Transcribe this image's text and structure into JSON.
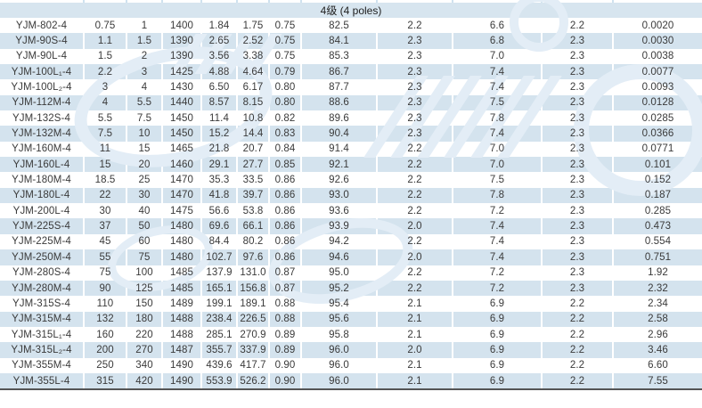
{
  "header": {
    "group_label": "4级 (4 poles)"
  },
  "colors": {
    "stripe": "#d4e3ee",
    "band": "#d7e5ef",
    "text": "#3a3a3a",
    "band_text": "#1e1e1e",
    "watermark": "#e3edf6",
    "tick": "#cfe2ef",
    "bottom_border": "#555555"
  },
  "table": {
    "rows": [
      [
        "YJM-802-4",
        "0.75",
        "1",
        "1400",
        "1.84",
        "1.75",
        "0.75",
        "82.5",
        "2.2",
        "6.6",
        "2.2",
        "0.0020"
      ],
      [
        "YJM-90S-4",
        "1.1",
        "1.5",
        "1390",
        "2.65",
        "2.52",
        "0.75",
        "84.1",
        "2.3",
        "6.8",
        "2.3",
        "0.0030"
      ],
      [
        "YJM-90L-4",
        "1.5",
        "2",
        "1390",
        "3.56",
        "3.38",
        "0.75",
        "85.3",
        "2.3",
        "7.0",
        "2.3",
        "0.0038"
      ],
      [
        "YJM-100L₁-4",
        "2.2",
        "3",
        "1425",
        "4.88",
        "4.64",
        "0.79",
        "86.7",
        "2.3",
        "7.4",
        "2.3",
        "0.0077"
      ],
      [
        "YJM-100L₂-4",
        "3",
        "4",
        "1430",
        "6.50",
        "6.17",
        "0.80",
        "87.7",
        "2.3",
        "7.4",
        "2.3",
        "0.0093"
      ],
      [
        "YJM-112M-4",
        "4",
        "5.5",
        "1440",
        "8.57",
        "8.15",
        "0.80",
        "88.6",
        "2.3",
        "7.5",
        "2.3",
        "0.0128"
      ],
      [
        "YJM-132S-4",
        "5.5",
        "7.5",
        "1450",
        "11.4",
        "10.8",
        "0.82",
        "89.6",
        "2.3",
        "7.8",
        "2.3",
        "0.0285"
      ],
      [
        "YJM-132M-4",
        "7.5",
        "10",
        "1450",
        "15.2",
        "14.4",
        "0.83",
        "90.4",
        "2.3",
        "7.4",
        "2.3",
        "0.0366"
      ],
      [
        "YJM-160M-4",
        "11",
        "15",
        "1465",
        "21.8",
        "20.7",
        "0.84",
        "91.4",
        "2.2",
        "7.0",
        "2.3",
        "0.0771"
      ],
      [
        "YJM-160L-4",
        "15",
        "20",
        "1460",
        "29.1",
        "27.7",
        "0.85",
        "92.1",
        "2.2",
        "7.0",
        "2.3",
        "0.101"
      ],
      [
        "YJM-180M-4",
        "18.5",
        "25",
        "1470",
        "35.3",
        "33.5",
        "0.86",
        "92.6",
        "2.2",
        "7.5",
        "2.3",
        "0.152"
      ],
      [
        "YJM-180L-4",
        "22",
        "30",
        "1470",
        "41.8",
        "39.7",
        "0.86",
        "93.0",
        "2.2",
        "7.8",
        "2.3",
        "0.187"
      ],
      [
        "YJM-200L-4",
        "30",
        "40",
        "1475",
        "56.6",
        "53.8",
        "0.86",
        "93.6",
        "2.2",
        "7.2",
        "2.3",
        "0.285"
      ],
      [
        "YJM-225S-4",
        "37",
        "50",
        "1480",
        "69.6",
        "66.1",
        "0.86",
        "93.9",
        "2.0",
        "7.4",
        "2.3",
        "0.473"
      ],
      [
        "YJM-225M-4",
        "45",
        "60",
        "1480",
        "84.4",
        "80.2",
        "0.86",
        "94.2",
        "2.2",
        "7.4",
        "2.3",
        "0.554"
      ],
      [
        "YJM-250M-4",
        "55",
        "75",
        "1480",
        "102.7",
        "97.6",
        "0.86",
        "94.6",
        "2.0",
        "7.4",
        "2.3",
        "0.751"
      ],
      [
        "YJM-280S-4",
        "75",
        "100",
        "1485",
        "137.9",
        "131.0",
        "0.87",
        "95.0",
        "2.2",
        "7.2",
        "2.3",
        "1.92"
      ],
      [
        "YJM-280M-4",
        "90",
        "125",
        "1485",
        "165.1",
        "156.8",
        "0.87",
        "95.2",
        "2.2",
        "7.2",
        "2.3",
        "2.32"
      ],
      [
        "YJM-315S-4",
        "110",
        "150",
        "1489",
        "199.1",
        "189.1",
        "0.88",
        "95.4",
        "2.1",
        "6.9",
        "2.2",
        "2.34"
      ],
      [
        "YJM-315M-4",
        "132",
        "180",
        "1488",
        "238.4",
        "226.5",
        "0.88",
        "95.6",
        "2.1",
        "6.9",
        "2.2",
        "2.58"
      ],
      [
        "YJM-315L₁-4",
        "160",
        "220",
        "1488",
        "285.1",
        "270.9",
        "0.89",
        "95.8",
        "2.1",
        "6.9",
        "2.2",
        "2.96"
      ],
      [
        "YJM-315L₂-4",
        "200",
        "270",
        "1487",
        "355.7",
        "337.9",
        "0.89",
        "96.0",
        "2.0",
        "6.9",
        "2.2",
        "3.46"
      ],
      [
        "YJM-355M-4",
        "250",
        "340",
        "1490",
        "439.6",
        "417.7",
        "0.90",
        "96.0",
        "2.1",
        "6.9",
        "2.2",
        "6.60"
      ],
      [
        "YJM-355L-4",
        "315",
        "420",
        "1490",
        "553.9",
        "526.2",
        "0.90",
        "96.0",
        "2.1",
        "6.9",
        "2.2",
        "7.55"
      ]
    ]
  }
}
